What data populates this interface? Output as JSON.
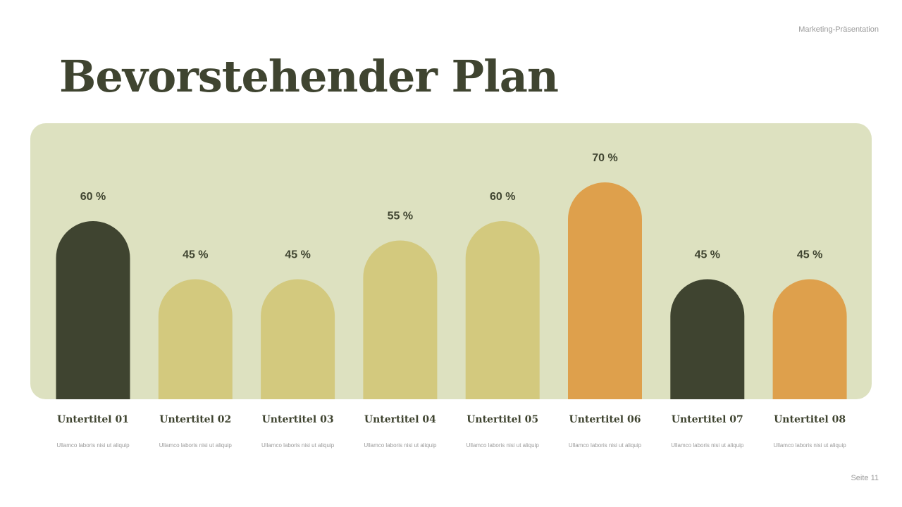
{
  "header": {
    "presentation": "Marketing-Präsentation"
  },
  "title": "Bevorstehender Plan",
  "footer": {
    "page": "Seite 11"
  },
  "colors": {
    "dark": "#3f4430",
    "khaki": "#d3c97e",
    "orange": "#dea04c",
    "panel": "#dde1c0"
  },
  "chart_data": {
    "type": "bar",
    "categories": [
      "Untertitel 01",
      "Untertitel 02",
      "Untertitel 03",
      "Untertitel 04",
      "Untertitel 05",
      "Untertitel 06",
      "Untertitel 07",
      "Untertitel 08"
    ],
    "descriptions": [
      "Ullamco laboris nisi ut aliquip",
      "Ullamco laboris nisi ut aliquip",
      "Ullamco laboris nisi ut aliquip",
      "Ullamco laboris nisi ut aliquip",
      "Ullamco laboris nisi ut aliquip",
      "Ullamco laboris nisi ut aliquip",
      "Ullamco laboris nisi ut aliquip",
      "Ullamco laboris nisi ut aliquip"
    ],
    "values": [
      60,
      45,
      45,
      55,
      60,
      70,
      45,
      45
    ],
    "labels": [
      "60 %",
      "45 %",
      "45 %",
      "55 %",
      "60 %",
      "70 %",
      "45 %",
      "45 %"
    ],
    "bar_colors": [
      "#3f4430",
      "#d3c97e",
      "#d3c97e",
      "#d3c97e",
      "#d3c97e",
      "#dea04c",
      "#3f4430",
      "#dea04c"
    ],
    "unit": "%",
    "grid": false
  }
}
